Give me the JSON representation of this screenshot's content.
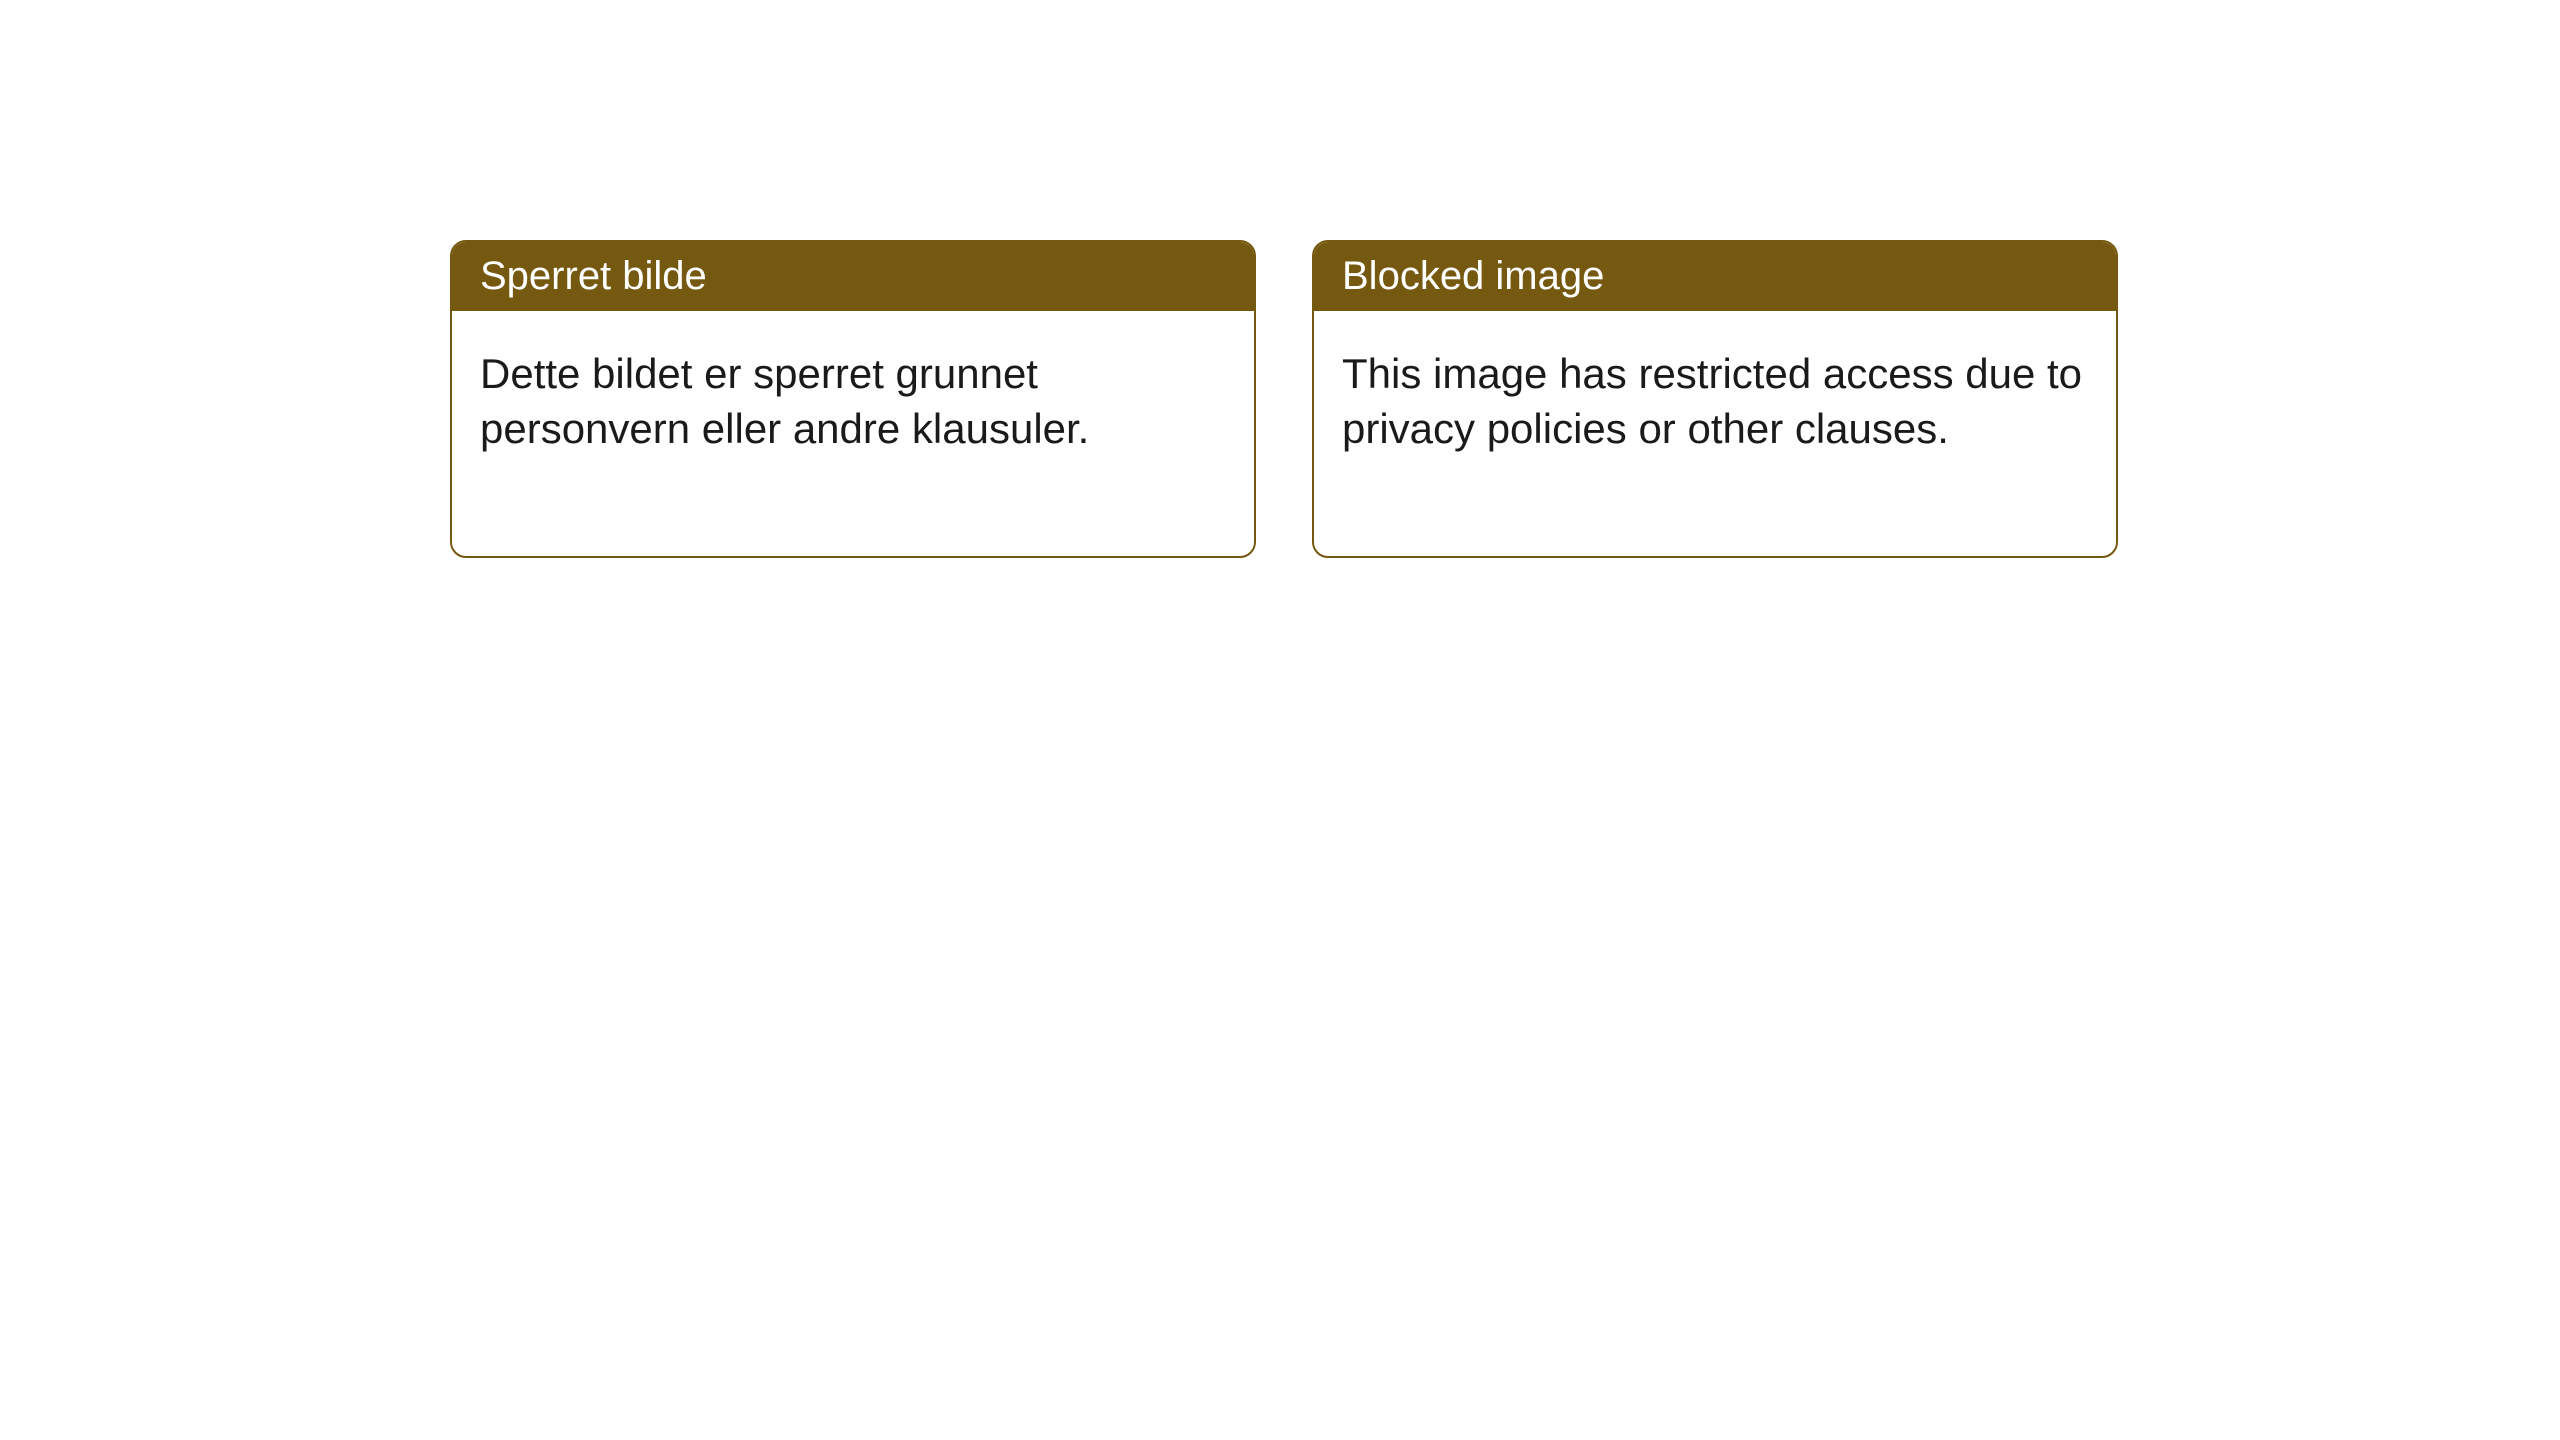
{
  "layout": {
    "background_color": "#ffffff",
    "card_border_color": "#765911",
    "card_border_radius": 16,
    "header_bg_color": "#765911",
    "header_text_color": "#ffffff",
    "body_text_color": "#1a1a1a",
    "header_fontsize": 40,
    "body_fontsize": 42
  },
  "cards": [
    {
      "title": "Sperret bilde",
      "body": "Dette bildet er sperret grunnet personvern eller andre klausuler."
    },
    {
      "title": "Blocked image",
      "body": "This image has restricted access due to privacy policies or other clauses."
    }
  ]
}
